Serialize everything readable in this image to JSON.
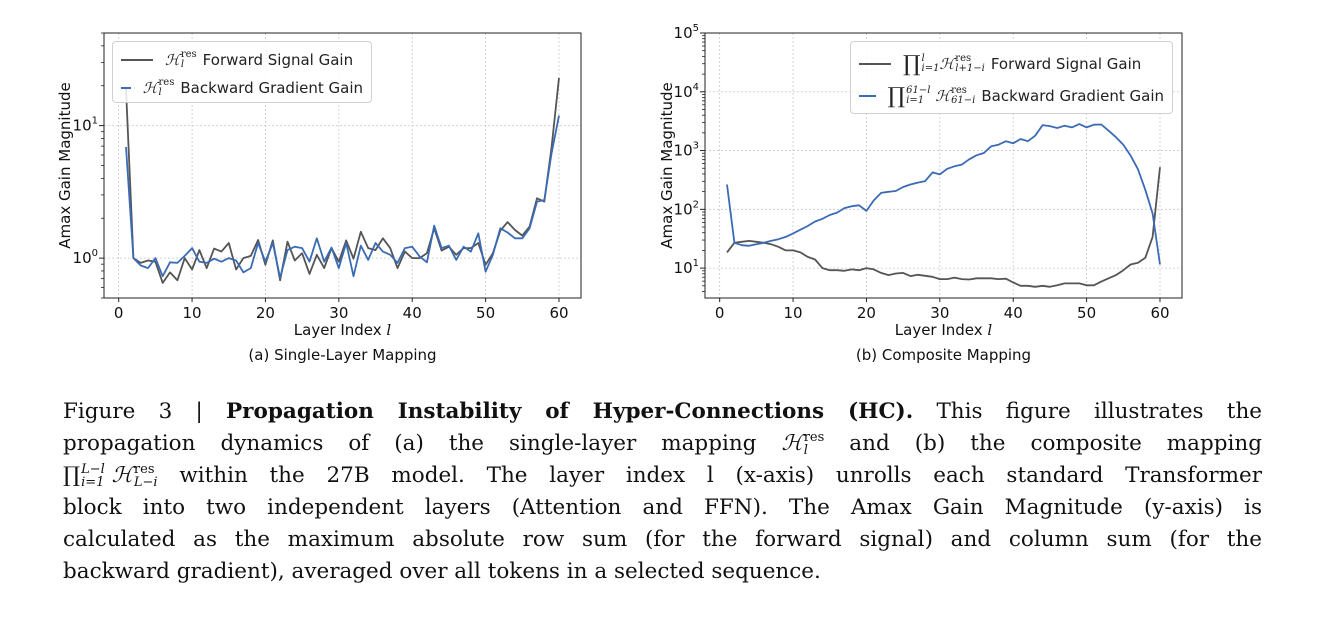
{
  "chart_data": [
    {
      "type": "line",
      "title": "",
      "subtitle": "(a) Single-Layer Mapping",
      "xlabel": "Layer Index",
      "xlabel_var": "l",
      "ylabel": "Amax Gain Magnitude",
      "yscale": "log",
      "xlim": [
        -2,
        63
      ],
      "ylim": [
        0.5,
        50
      ],
      "grid": true,
      "legend_position": "top-left",
      "x_ticks": [
        0,
        10,
        20,
        30,
        40,
        50,
        60
      ],
      "y_ticks": [
        {
          "value": 1,
          "base": "10",
          "exp": "0"
        },
        {
          "value": 10,
          "base": "10",
          "exp": "1"
        }
      ],
      "x": [
        1,
        2,
        3,
        4,
        5,
        6,
        7,
        8,
        9,
        10,
        11,
        12,
        13,
        14,
        15,
        16,
        17,
        18,
        19,
        20,
        21,
        22,
        23,
        24,
        25,
        26,
        27,
        28,
        29,
        30,
        31,
        32,
        33,
        34,
        35,
        36,
        37,
        38,
        39,
        40,
        41,
        42,
        43,
        44,
        45,
        46,
        47,
        48,
        49,
        50,
        51,
        52,
        53,
        54,
        55,
        56,
        57,
        58,
        59,
        60
      ],
      "series": [
        {
          "name": "Forward Signal Gain",
          "math": {
            "base": "ℋ",
            "sup": "res",
            "sub": "l"
          },
          "color": "#555555",
          "values": [
            19,
            1.0,
            0.92,
            0.96,
            0.94,
            0.65,
            0.78,
            0.68,
            1.0,
            0.82,
            1.15,
            0.84,
            1.18,
            1.12,
            1.3,
            0.82,
            1.0,
            1.04,
            1.37,
            0.89,
            1.36,
            0.68,
            1.33,
            0.96,
            1.09,
            0.76,
            1.06,
            0.84,
            1.19,
            0.94,
            1.36,
            0.99,
            1.58,
            1.19,
            1.15,
            1.41,
            1.19,
            0.84,
            1.12,
            1.0,
            1.0,
            1.09,
            1.68,
            1.14,
            1.22,
            1.06,
            1.19,
            1.19,
            1.3,
            0.89,
            1.09,
            1.61,
            1.87,
            1.63,
            1.48,
            1.73,
            2.83,
            2.67,
            6.9,
            22.9
          ]
        },
        {
          "name": "Backward Gradient Gain",
          "math": {
            "base": "ℋ",
            "sup": "res",
            "sub": "l"
          },
          "color": "#3b6bb5",
          "values": [
            6.9,
            1.0,
            0.88,
            0.84,
            1.0,
            0.73,
            0.93,
            0.92,
            1.04,
            1.19,
            0.94,
            0.92,
            0.99,
            0.94,
            1.0,
            0.96,
            0.78,
            0.84,
            1.3,
            0.94,
            1.3,
            0.71,
            1.15,
            1.22,
            1.19,
            0.94,
            1.41,
            0.94,
            1.2,
            0.84,
            1.3,
            0.73,
            1.24,
            0.97,
            1.3,
            1.12,
            1.06,
            0.92,
            1.19,
            1.22,
            1.03,
            0.93,
            1.76,
            1.19,
            1.24,
            0.97,
            1.22,
            1.12,
            1.54,
            0.79,
            1.06,
            1.68,
            1.56,
            1.41,
            1.41,
            1.68,
            2.67,
            2.74,
            6.2,
            11.9
          ]
        }
      ]
    },
    {
      "type": "line",
      "title": "",
      "subtitle": "(b) Composite Mapping",
      "xlabel": "Layer Index",
      "xlabel_var": "l",
      "ylabel": "Amax Gain Magnitude",
      "yscale": "log",
      "xlim": [
        -2,
        63
      ],
      "ylim": [
        3.1,
        100000
      ],
      "grid": true,
      "legend_position": "top-right",
      "x_ticks": [
        0,
        10,
        20,
        30,
        40,
        50,
        60
      ],
      "y_ticks": [
        {
          "value": 10,
          "base": "10",
          "exp": "1"
        },
        {
          "value": 100,
          "base": "10",
          "exp": "2"
        },
        {
          "value": 1000,
          "base": "10",
          "exp": "3"
        },
        {
          "value": 10000,
          "base": "10",
          "exp": "4"
        },
        {
          "value": 100000,
          "base": "10",
          "exp": "5"
        }
      ],
      "x": [
        1,
        2,
        3,
        4,
        5,
        6,
        7,
        8,
        9,
        10,
        11,
        12,
        13,
        14,
        15,
        16,
        17,
        18,
        19,
        20,
        21,
        22,
        23,
        24,
        25,
        26,
        27,
        28,
        29,
        30,
        31,
        32,
        33,
        34,
        35,
        36,
        37,
        38,
        39,
        40,
        41,
        42,
        43,
        44,
        45,
        46,
        47,
        48,
        49,
        50,
        51,
        52,
        53,
        54,
        55,
        56,
        57,
        58,
        59,
        60
      ],
      "series": [
        {
          "name": "Forward Signal Gain",
          "math": {
            "prod_sup": "l",
            "prod_sub": "i=1",
            "base": "ℋ",
            "sup": "res",
            "sub": "l+1−i"
          },
          "color": "#555555",
          "values": [
            18.5,
            27,
            28,
            29,
            28,
            27,
            25.5,
            23,
            20,
            20,
            18.5,
            15.5,
            14,
            10,
            9.2,
            9.2,
            9,
            9.5,
            9.2,
            10,
            9.5,
            8.3,
            7.6,
            8.1,
            8.3,
            7.3,
            7.7,
            7.4,
            7.1,
            6.5,
            6.5,
            6.9,
            6.5,
            6.4,
            6.7,
            6.7,
            6.7,
            6.5,
            6.6,
            5.7,
            5.0,
            5.0,
            4.8,
            5.0,
            4.8,
            5.1,
            5.5,
            5.5,
            5.5,
            5.1,
            5.1,
            5.9,
            6.7,
            7.6,
            9.2,
            11.5,
            12.3,
            15,
            34,
            520
          ]
        },
        {
          "name": "Backward Gradient Gain",
          "math": {
            "prod_sup": "61−l",
            "prod_sub": "i=1",
            "base": "ℋ",
            "sup": "res",
            "sub": "61−i"
          },
          "color": "#3b6bb5",
          "values": [
            265,
            27,
            24.5,
            24,
            25.5,
            27,
            29,
            31,
            34,
            39,
            45,
            52,
            62,
            69,
            80,
            88,
            105,
            113,
            117,
            94,
            142,
            190,
            199,
            205,
            240,
            265,
            285,
            302,
            425,
            393,
            490,
            540,
            577,
            710,
            830,
            910,
            1180,
            1260,
            1440,
            1330,
            1570,
            1440,
            1790,
            2710,
            2610,
            2420,
            2650,
            2480,
            2820,
            2480,
            2750,
            2780,
            2180,
            1690,
            1260,
            820,
            480,
            215,
            85,
            11.5
          ]
        }
      ]
    }
  ],
  "caption": {
    "label": "Figure 3 |",
    "bold_title": "Propagation Instability of Hyper-Connections (HC).",
    "l1_rest": "This figure illustrates the",
    "l2_a": "propagation dynamics of (a) the single-layer mapping",
    "l2_math": {
      "base": "ℋ",
      "sup": "res",
      "sub": "l"
    },
    "l2_b": "and (b) the composite mapping",
    "l3_math": {
      "prod_sup": "L−l",
      "prod_sub": "i=1",
      "base": "ℋ",
      "sup": "res",
      "sub": "L−i"
    },
    "l3_b": "within the 27B model. The layer index l (x-axis) unrolls each standard Transformer",
    "l4": "block into two independent layers (Attention and FFN). The Amax Gain Magnitude (y-axis) is",
    "l5": "calculated as the maximum absolute row sum (for the forward signal) and column sum (for the",
    "l6": "backward gradient), averaged over all tokens in a selected sequence."
  }
}
